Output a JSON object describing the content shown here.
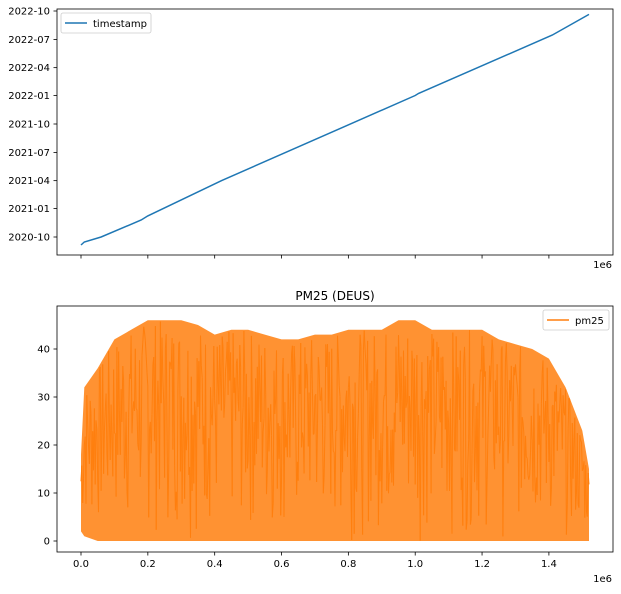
{
  "chart_data": [
    {
      "type": "line",
      "title": "",
      "x_range": [
        0,
        1520000
      ],
      "x_scale_label": "1e6",
      "y_ticks": [
        "2020-10",
        "2021-01",
        "2021-04",
        "2021-07",
        "2021-10",
        "2022-01",
        "2022-04",
        "2022-07",
        "2022-10"
      ],
      "series": [
        {
          "name": "timestamp",
          "color": "#1f77b4",
          "x": [
            0,
            10000,
            60000,
            180000,
            200000,
            420000,
            1000000,
            1010000,
            1410000,
            1520000
          ],
          "y": [
            "2020-09-05",
            "2020-09-15",
            "2020-10-01",
            "2020-11-25",
            "2020-12-08",
            "2021-04-01",
            "2022-01-01",
            "2022-01-08",
            "2022-07-15",
            "2022-09-20"
          ]
        }
      ],
      "legend": "top-left"
    },
    {
      "type": "line",
      "title": "PM25 (DEUS)",
      "x_range": [
        0,
        1520000
      ],
      "x_ticks": [
        "0.0",
        "0.2",
        "0.4",
        "0.6",
        "0.8",
        "1.0",
        "1.2",
        "1.4"
      ],
      "x_scale_label": "1e6",
      "y_ticks": [
        "0",
        "10",
        "20",
        "30",
        "40"
      ],
      "y_range": [
        0,
        47
      ],
      "series": [
        {
          "name": "pm25",
          "color": "#ff7f0e",
          "x": [
            0,
            10000,
            50000,
            100000,
            150000,
            200000,
            250000,
            300000,
            350000,
            400000,
            450000,
            500000,
            550000,
            600000,
            650000,
            700000,
            750000,
            800000,
            850000,
            900000,
            950000,
            1000000,
            1050000,
            1100000,
            1150000,
            1200000,
            1250000,
            1300000,
            1350000,
            1400000,
            1450000,
            1500000,
            1520000
          ],
          "y_max": [
            18,
            32,
            36,
            42,
            44,
            46,
            46,
            46,
            45,
            43,
            44,
            44,
            43,
            42,
            42,
            43,
            43,
            44,
            44,
            44,
            46,
            46,
            44,
            44,
            44,
            44,
            42,
            41,
            40,
            38,
            32,
            23,
            15
          ],
          "y_min": [
            2,
            1,
            0,
            0,
            0,
            0,
            0,
            0,
            0,
            0,
            0,
            0,
            0,
            0,
            0,
            0,
            0,
            0,
            0,
            0,
            0,
            0,
            0,
            0,
            0,
            0,
            0,
            0,
            0,
            0,
            0,
            0,
            0
          ]
        }
      ],
      "legend": "top-right"
    }
  ]
}
